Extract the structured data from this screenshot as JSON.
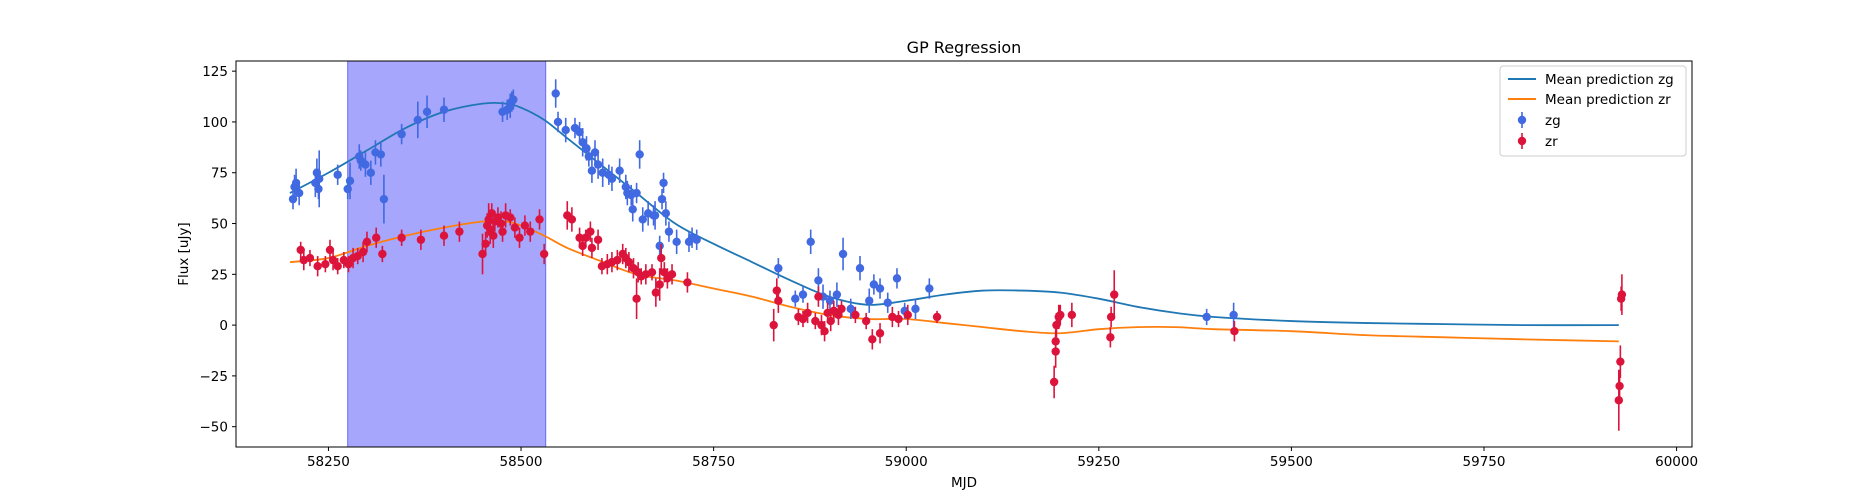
{
  "chart_data": {
    "type": "scatter",
    "title": "GP Regression",
    "xlabel": "MJD",
    "ylabel": "Flux [uJy]",
    "xlim": [
      58130,
      60020
    ],
    "ylim": [
      -60,
      130
    ],
    "xticks": [
      58250,
      58500,
      58750,
      59000,
      59250,
      59500,
      59750,
      60000
    ],
    "yticks": [
      -50,
      -25,
      0,
      25,
      50,
      75,
      100,
      125
    ],
    "grid": false,
    "legend_position": "upper right",
    "shaded_region": {
      "x0": 58275,
      "x1": 58532,
      "color": "#a6a6fc"
    },
    "lines": [
      {
        "name": "Mean prediction zg",
        "color": "#1f77b4",
        "x": [
          58200,
          58250,
          58300,
          58350,
          58400,
          58450,
          58480,
          58500,
          58530,
          58560,
          58600,
          58650,
          58700,
          58750,
          58800,
          58850,
          58900,
          58950,
          59000,
          59050,
          59100,
          59150,
          59200,
          59250,
          59300,
          59350,
          59400,
          59500,
          59600,
          59700,
          59800,
          59925
        ],
        "y": [
          65,
          75,
          86,
          97,
          105,
          109,
          109,
          107,
          101,
          92,
          80,
          65,
          50,
          40,
          31,
          22,
          14,
          10,
          12,
          15,
          17,
          17,
          16,
          13,
          9,
          6,
          4,
          2,
          1,
          0.5,
          0,
          0
        ]
      },
      {
        "name": "Mean prediction zr",
        "color": "#ff7f0e",
        "x": [
          58200,
          58250,
          58300,
          58350,
          58400,
          58450,
          58480,
          58500,
          58530,
          58560,
          58600,
          58650,
          58700,
          58750,
          58800,
          58850,
          58900,
          58950,
          59000,
          59050,
          59100,
          59150,
          59200,
          59250,
          59300,
          59350,
          59400,
          59500,
          59600,
          59700,
          59800,
          59925
        ],
        "y": [
          31,
          33,
          39,
          44,
          48,
          51,
          51,
          49,
          44,
          38,
          32,
          25,
          22,
          18,
          14,
          9,
          5,
          3,
          3,
          1,
          -1,
          -3,
          -4,
          -2,
          -1,
          -1,
          -2,
          -3,
          -5,
          -6,
          -7,
          -8
        ]
      }
    ],
    "series": [
      {
        "name": "zg",
        "color": "#4169e1",
        "points": [
          [
            58204,
            62,
            5
          ],
          [
            58206,
            68,
            6
          ],
          [
            58208,
            70,
            7
          ],
          [
            58212,
            65,
            6
          ],
          [
            58233,
            70,
            7
          ],
          [
            58235,
            75,
            7
          ],
          [
            58237,
            67,
            5
          ],
          [
            58238,
            72,
            14
          ],
          [
            58262,
            74,
            5
          ],
          [
            58275,
            67,
            5
          ],
          [
            58278,
            71,
            9
          ],
          [
            58290,
            83,
            6
          ],
          [
            58292,
            81,
            5
          ],
          [
            58298,
            79,
            6
          ],
          [
            58305,
            75,
            6
          ],
          [
            58311,
            85,
            6
          ],
          [
            58318,
            84,
            6
          ],
          [
            58322,
            62,
            12
          ],
          [
            58345,
            94,
            5
          ],
          [
            58366,
            101,
            9
          ],
          [
            58378,
            105,
            8
          ],
          [
            58400,
            106,
            6
          ],
          [
            58476,
            105,
            5
          ],
          [
            58482,
            106,
            5
          ],
          [
            58486,
            108,
            6
          ],
          [
            58488,
            110,
            5
          ],
          [
            58490,
            111,
            5
          ],
          [
            58545,
            114,
            7
          ],
          [
            58548,
            100,
            5
          ],
          [
            58558,
            96,
            6
          ],
          [
            58570,
            97,
            5
          ],
          [
            58576,
            95,
            5
          ],
          [
            58580,
            90,
            7
          ],
          [
            58585,
            87,
            6
          ],
          [
            58588,
            83,
            5
          ],
          [
            58592,
            76,
            6
          ],
          [
            58596,
            85,
            6
          ],
          [
            58600,
            79,
            7
          ],
          [
            58606,
            75,
            7
          ],
          [
            58614,
            74,
            5
          ],
          [
            58618,
            72,
            6
          ],
          [
            58628,
            76,
            6
          ],
          [
            58636,
            68,
            6
          ],
          [
            58638,
            65,
            6
          ],
          [
            58643,
            64,
            5
          ],
          [
            58645,
            57,
            6
          ],
          [
            58650,
            65,
            5
          ],
          [
            58654,
            84,
            7
          ],
          [
            58658,
            52,
            6
          ],
          [
            58665,
            55,
            6
          ],
          [
            58672,
            54,
            5
          ],
          [
            58674,
            54,
            7
          ],
          [
            58680,
            39,
            5
          ],
          [
            58683,
            62,
            5
          ],
          [
            58685,
            70,
            5
          ],
          [
            58688,
            55,
            6
          ],
          [
            58692,
            46,
            5
          ],
          [
            58702,
            41,
            6
          ],
          [
            58718,
            41,
            5
          ],
          [
            58722,
            43,
            5
          ],
          [
            58728,
            42,
            5
          ],
          [
            58834,
            28,
            5
          ],
          [
            58856,
            13,
            4
          ],
          [
            58866,
            15,
            4
          ],
          [
            58876,
            41,
            6
          ],
          [
            58886,
            22,
            6
          ],
          [
            58892,
            14,
            6
          ],
          [
            58901,
            12,
            5
          ],
          [
            58910,
            15,
            6
          ],
          [
            58918,
            35,
            8
          ],
          [
            58928,
            8,
            5
          ],
          [
            58940,
            28,
            6
          ],
          [
            58952,
            12,
            6
          ],
          [
            58958,
            20,
            5
          ],
          [
            58966,
            18,
            5
          ],
          [
            58976,
            11,
            5
          ],
          [
            58988,
            23,
            5
          ],
          [
            58998,
            7,
            4
          ],
          [
            59012,
            8,
            5
          ],
          [
            59030,
            18,
            5
          ],
          [
            59390,
            4,
            4
          ],
          [
            59425,
            5,
            6
          ]
        ]
      },
      {
        "name": "zr",
        "color": "#dc143c",
        "points": [
          [
            58214,
            37,
            4
          ],
          [
            58218,
            32,
            5
          ],
          [
            58226,
            33,
            4
          ],
          [
            58236,
            29,
            5
          ],
          [
            58246,
            30,
            4
          ],
          [
            58252,
            37,
            5
          ],
          [
            58256,
            32,
            5
          ],
          [
            58262,
            29,
            4
          ],
          [
            58270,
            32,
            4
          ],
          [
            58276,
            30,
            4
          ],
          [
            58282,
            33,
            5
          ],
          [
            58288,
            34,
            4
          ],
          [
            58295,
            36,
            5
          ],
          [
            58300,
            41,
            5
          ],
          [
            58312,
            43,
            5
          ],
          [
            58320,
            35,
            4
          ],
          [
            58345,
            43,
            4
          ],
          [
            58370,
            42,
            5
          ],
          [
            58400,
            44,
            5
          ],
          [
            58420,
            46,
            5
          ],
          [
            58450,
            35,
            10
          ],
          [
            58454,
            40,
            6
          ],
          [
            58456,
            49,
            6
          ],
          [
            58458,
            52,
            8
          ],
          [
            58460,
            47,
            7
          ],
          [
            58462,
            55,
            5
          ],
          [
            58464,
            44,
            6
          ],
          [
            58466,
            51,
            5
          ],
          [
            58470,
            53,
            5
          ],
          [
            58474,
            50,
            6
          ],
          [
            58476,
            46,
            5
          ],
          [
            58480,
            54,
            6
          ],
          [
            58486,
            53,
            4
          ],
          [
            58492,
            48,
            5
          ],
          [
            58498,
            43,
            5
          ],
          [
            58505,
            49,
            5
          ],
          [
            58512,
            46,
            5
          ],
          [
            58524,
            52,
            5
          ],
          [
            58530,
            35,
            5
          ],
          [
            58560,
            54,
            7
          ],
          [
            58566,
            52,
            6
          ],
          [
            58576,
            43,
            5
          ],
          [
            58580,
            39,
            5
          ],
          [
            58584,
            43,
            4
          ],
          [
            58590,
            46,
            5
          ],
          [
            58592,
            38,
            5
          ],
          [
            58600,
            42,
            5
          ],
          [
            58605,
            29,
            4
          ],
          [
            58612,
            30,
            5
          ],
          [
            58618,
            31,
            5
          ],
          [
            58625,
            32,
            5
          ],
          [
            58632,
            35,
            5
          ],
          [
            58636,
            33,
            5
          ],
          [
            58640,
            31,
            5
          ],
          [
            58646,
            28,
            5
          ],
          [
            58650,
            13,
            10
          ],
          [
            58652,
            26,
            5
          ],
          [
            58656,
            24,
            4
          ],
          [
            58662,
            25,
            5
          ],
          [
            58670,
            26,
            4
          ],
          [
            58675,
            16,
            7
          ],
          [
            58680,
            20,
            8
          ],
          [
            58682,
            33,
            7
          ],
          [
            58686,
            26,
            5
          ],
          [
            58690,
            23,
            5
          ],
          [
            58696,
            25,
            5
          ],
          [
            58716,
            21,
            5
          ],
          [
            58828,
            0,
            8
          ],
          [
            58832,
            17,
            6
          ],
          [
            58834,
            12,
            6
          ],
          [
            58860,
            4,
            4
          ],
          [
            58866,
            3,
            4
          ],
          [
            58872,
            6,
            5
          ],
          [
            58882,
            2,
            4
          ],
          [
            58886,
            14,
            5
          ],
          [
            58890,
            0,
            5
          ],
          [
            58894,
            -3,
            5
          ],
          [
            58898,
            6,
            5
          ],
          [
            58902,
            2,
            5
          ],
          [
            58906,
            7,
            5
          ],
          [
            58912,
            5,
            5
          ],
          [
            58916,
            8,
            4
          ],
          [
            58934,
            5,
            4
          ],
          [
            58948,
            2,
            4
          ],
          [
            58956,
            -7,
            5
          ],
          [
            58966,
            -4,
            5
          ],
          [
            58982,
            4,
            5
          ],
          [
            58990,
            3,
            4
          ],
          [
            59002,
            5,
            5
          ],
          [
            59040,
            4,
            3
          ],
          [
            59192,
            -28,
            8
          ],
          [
            59194,
            -13,
            8
          ],
          [
            59194,
            -8,
            6
          ],
          [
            59195,
            0,
            6
          ],
          [
            59198,
            4,
            6
          ],
          [
            59200,
            5,
            5
          ],
          [
            59215,
            5,
            6
          ],
          [
            59265,
            -6,
            5
          ],
          [
            59266,
            4,
            5
          ],
          [
            59270,
            15,
            12
          ],
          [
            59426,
            -3,
            5
          ],
          [
            59925,
            -37,
            15
          ],
          [
            59926,
            -30,
            8
          ],
          [
            59927,
            -18,
            8
          ],
          [
            59928,
            13,
            6
          ],
          [
            59929,
            15,
            10
          ]
        ]
      }
    ]
  }
}
